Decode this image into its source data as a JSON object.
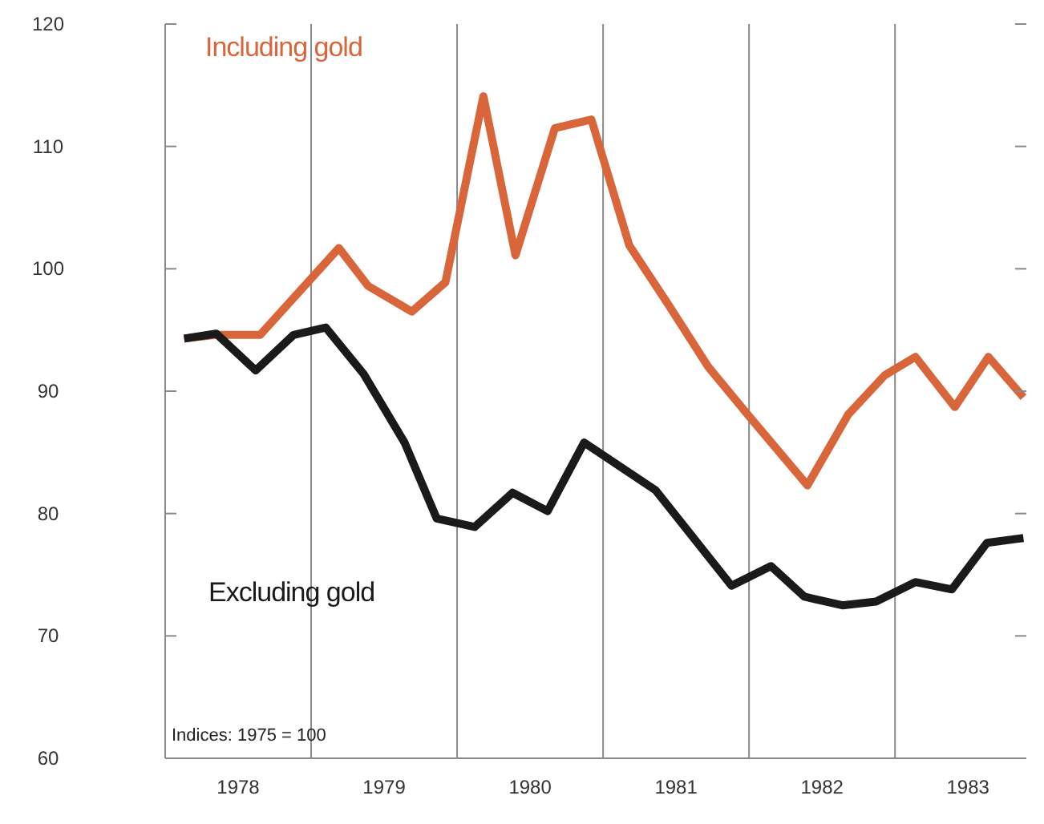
{
  "chart_data": {
    "type": "line",
    "xlim": [
      1978,
      1983.9
    ],
    "xticks": [
      {
        "value": 1978.5,
        "label": "1978"
      },
      {
        "value": 1979.5,
        "label": "1979"
      },
      {
        "value": 1980.5,
        "label": "1980"
      },
      {
        "value": 1981.5,
        "label": "1981"
      },
      {
        "value": 1982.5,
        "label": "1982"
      },
      {
        "value": 1983.5,
        "label": "1983"
      }
    ],
    "ylim": [
      60,
      120
    ],
    "yticks": [
      60,
      70,
      80,
      90,
      100,
      110,
      120
    ],
    "marker": "none",
    "line_style": "solid",
    "ref_lines": [
      {
        "axis": "x",
        "value": 1979,
        "color": "#8a8a8a"
      },
      {
        "axis": "x",
        "value": 1980,
        "color": "#8a8a8a"
      },
      {
        "axis": "x",
        "value": 1981,
        "color": "#8a8a8a"
      },
      {
        "axis": "x",
        "value": 1982,
        "color": "#8a8a8a"
      },
      {
        "axis": "x",
        "value": 1983,
        "color": "#8a8a8a"
      }
    ],
    "annotations": [
      "Indices: 1975 = 100"
    ],
    "series": [
      {
        "name": "Including gold",
        "color": "#d9653b",
        "x": [
          1978.13,
          1978.35,
          1978.65,
          1979.19,
          1979.39,
          1979.69,
          1979.92,
          1980.18,
          1980.4,
          1980.67,
          1980.92,
          1981.18,
          1981.44,
          1981.72,
          1981.99,
          1982.4,
          1982.68,
          1982.93,
          1983.14,
          1983.41,
          1983.64,
          1983.88
        ],
        "values": [
          94.3,
          94.6,
          94.6,
          101.7,
          98.6,
          96.5,
          98.9,
          114.1,
          101.1,
          111.5,
          112.2,
          101.9,
          97.2,
          92,
          88.1,
          82.3,
          88.1,
          91.3,
          92.8,
          88.7,
          92.8,
          89.5
        ]
      },
      {
        "name": "Excluding gold",
        "color": "#1a1a1a",
        "x": [
          1978.13,
          1978.35,
          1978.62,
          1978.88,
          1979.1,
          1979.36,
          1979.64,
          1979.86,
          1980.12,
          1980.38,
          1980.62,
          1980.87,
          1981.36,
          1981.88,
          1982.15,
          1982.38,
          1982.64,
          1982.87,
          1983.14,
          1983.39,
          1983.63,
          1983.88
        ],
        "values": [
          94.3,
          94.7,
          91.7,
          94.6,
          95.2,
          91.4,
          85.8,
          79.6,
          78.9,
          81.7,
          80.2,
          85.8,
          81.9,
          74.1,
          75.7,
          73.2,
          72.5,
          72.8,
          74.4,
          73.8,
          77.6,
          78
        ]
      }
    ]
  }
}
